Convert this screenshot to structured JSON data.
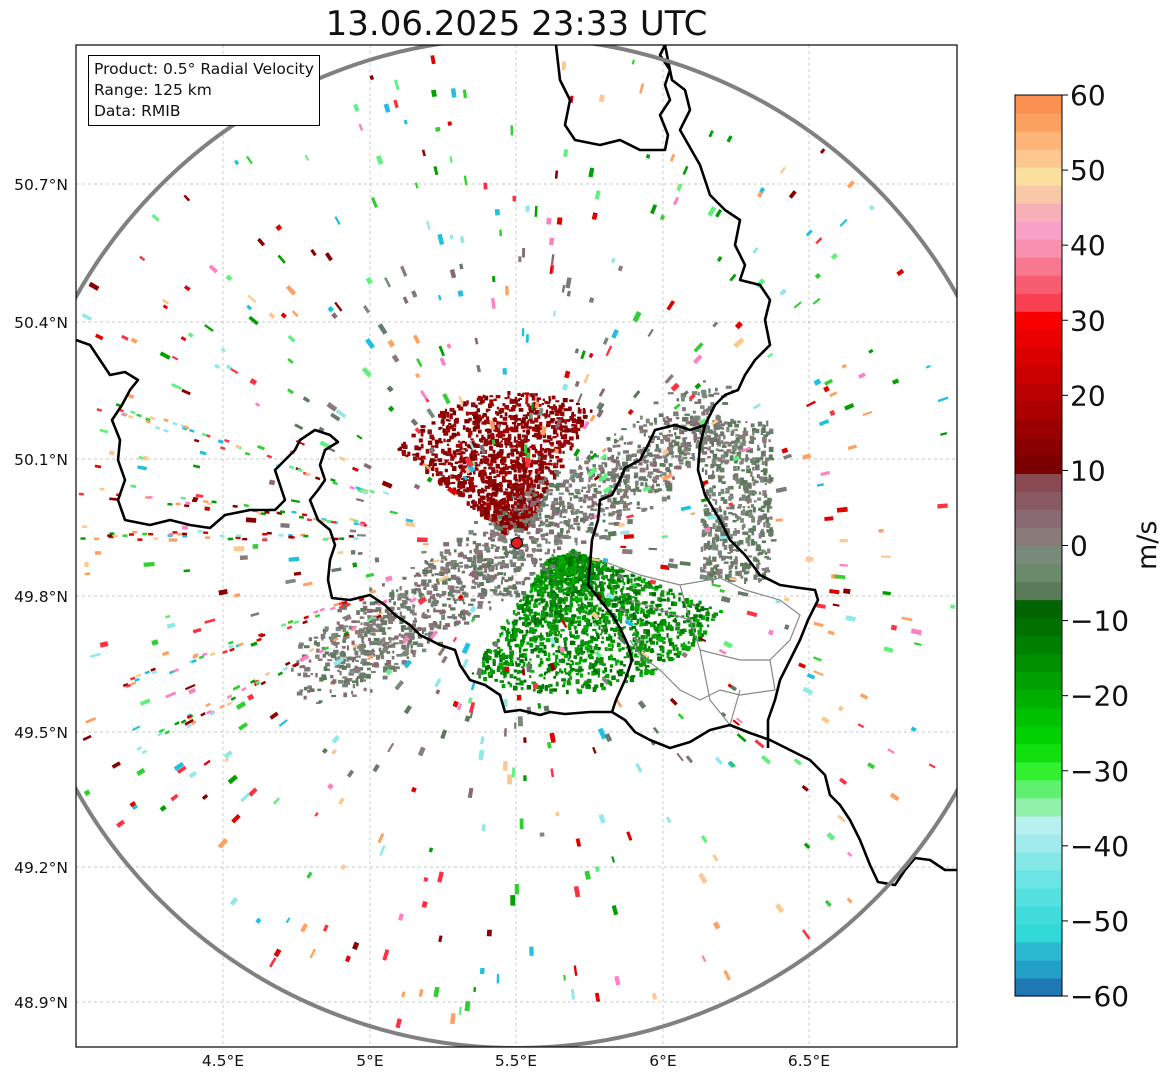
{
  "title": "13.06.2025 23:33 UTC",
  "info": {
    "product": "Product: 0.5° Radial Velocity",
    "range": "Range: 125 km",
    "data": "Data: RMIB"
  },
  "axes": {
    "lon_ticks": [
      "4.5°E",
      "5°E",
      "5.5°E",
      "6°E",
      "6.5°E"
    ],
    "lat_ticks": [
      "50.7°N",
      "50.4°N",
      "50.1°N",
      "49.8°N",
      "49.5°N",
      "49.2°N",
      "48.9°N"
    ]
  },
  "colorbar": {
    "label": "m/s",
    "ticks": [
      "60",
      "50",
      "40",
      "30",
      "20",
      "10",
      "0",
      "−10",
      "−20",
      "−30",
      "−40",
      "−50",
      "−60"
    ],
    "min": -60,
    "max": 60,
    "colors": [
      "#1f77b4",
      "#23a0c8",
      "#2ab8d0",
      "#30d8d8",
      "#40dcdc",
      "#55e0e0",
      "#6ae4e4",
      "#85e8e8",
      "#a0ecec",
      "#b8f0f0",
      "#90f0a8",
      "#60f070",
      "#30f030",
      "#10e010",
      "#00d000",
      "#00c000",
      "#00b000",
      "#00a000",
      "#009000",
      "#008000",
      "#007000",
      "#006400",
      "#5a7a5a",
      "#6a8a6a",
      "#7a8a7a",
      "#8a7a7a",
      "#8a6a72",
      "#8a5a62",
      "#8a4a52",
      "#7a0000",
      "#8a0000",
      "#9a0000",
      "#aa0000",
      "#ba0000",
      "#ca0000",
      "#da0000",
      "#ea0000",
      "#f80000",
      "#f84050",
      "#f85c70",
      "#f87890",
      "#f890b0",
      "#f8a0c8",
      "#f8b0b8",
      "#f8c8a8",
      "#fce0a0",
      "#fcc890",
      "#fcb478",
      "#fca060",
      "#fc9050"
    ]
  },
  "radar": {
    "site_marker": "radar-site"
  }
}
